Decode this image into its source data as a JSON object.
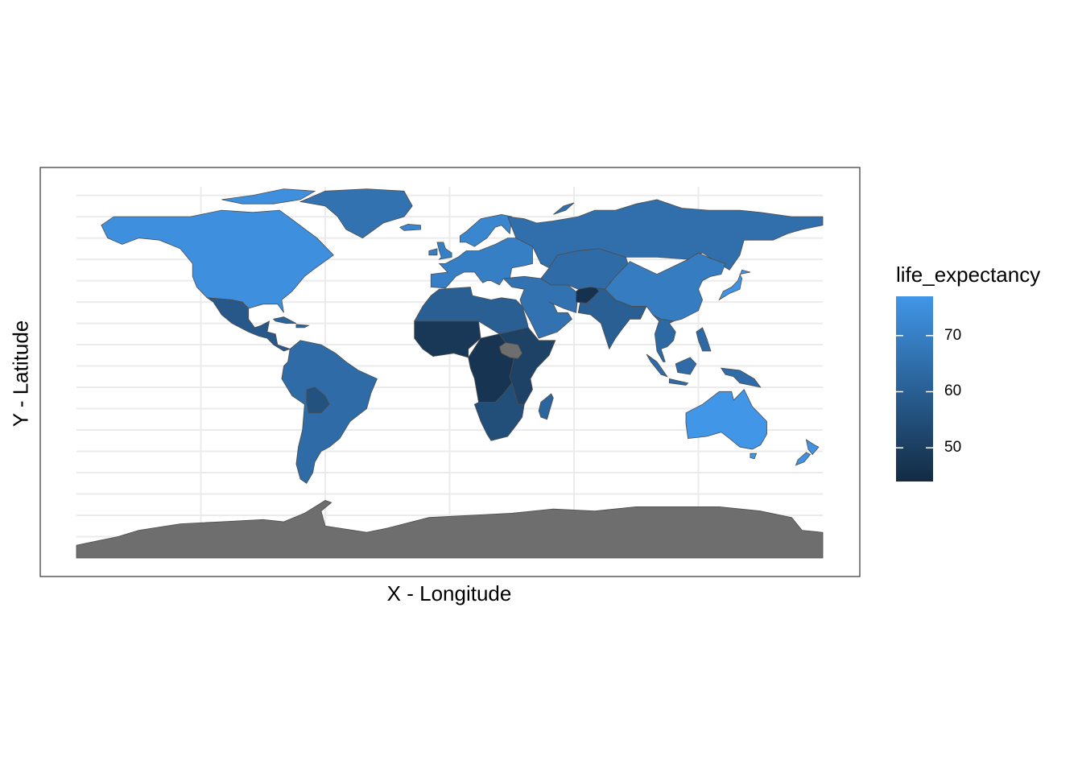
{
  "title": "",
  "xlabel": "X - Longitude",
  "ylabel": "Y - Latitude",
  "legend": {
    "title": "life_expectancy",
    "min": 44,
    "max": 77,
    "ticks": [
      {
        "value": 50,
        "label": "50"
      },
      {
        "value": 60,
        "label": "60"
      },
      {
        "value": 70,
        "label": "70"
      }
    ],
    "low_color": "#132B43",
    "high_color": "#4196E8"
  },
  "colors": {
    "na_fill": "#6E6E6E",
    "border": "#4D4D4D",
    "grid": "#EBEBEB",
    "panel_border": "#333333"
  },
  "chart_data": {
    "type": "choropleth",
    "xlim": [
      -180,
      180
    ],
    "ylim": [
      -90,
      84
    ],
    "grid": true,
    "legend_position": "right",
    "regions": [
      {
        "key": "north_america",
        "value": 75
      },
      {
        "key": "mexico_central",
        "value": 58
      },
      {
        "key": "caribbean",
        "value": 62
      },
      {
        "key": "south_america",
        "value": 64
      },
      {
        "key": "bolivia",
        "value": 56
      },
      {
        "key": "greenland",
        "value": 66
      },
      {
        "key": "iceland",
        "value": 72
      },
      {
        "key": "europe",
        "value": 70
      },
      {
        "key": "scandinavia",
        "value": 72
      },
      {
        "key": "north_africa",
        "value": 60
      },
      {
        "key": "west_africa",
        "value": 48
      },
      {
        "key": "central_africa",
        "value": 47
      },
      {
        "key": "east_africa",
        "value": 51
      },
      {
        "key": "southern_africa",
        "value": 55
      },
      {
        "key": "madagascar",
        "value": 62
      },
      {
        "key": "middle_east",
        "value": 66
      },
      {
        "key": "south_asia",
        "value": 60
      },
      {
        "key": "afghanistan",
        "value": 46
      },
      {
        "key": "russia",
        "value": 65
      },
      {
        "key": "central_asia",
        "value": 64
      },
      {
        "key": "china",
        "value": 69
      },
      {
        "key": "japan",
        "value": 76
      },
      {
        "key": "southeast_asia",
        "value": 63
      },
      {
        "key": "indonesia",
        "value": 64
      },
      {
        "key": "australia",
        "value": 77
      },
      {
        "key": "new_zealand",
        "value": 76
      },
      {
        "key": "antarctica",
        "value": null
      },
      {
        "key": "south_sudan",
        "value": null
      }
    ]
  }
}
